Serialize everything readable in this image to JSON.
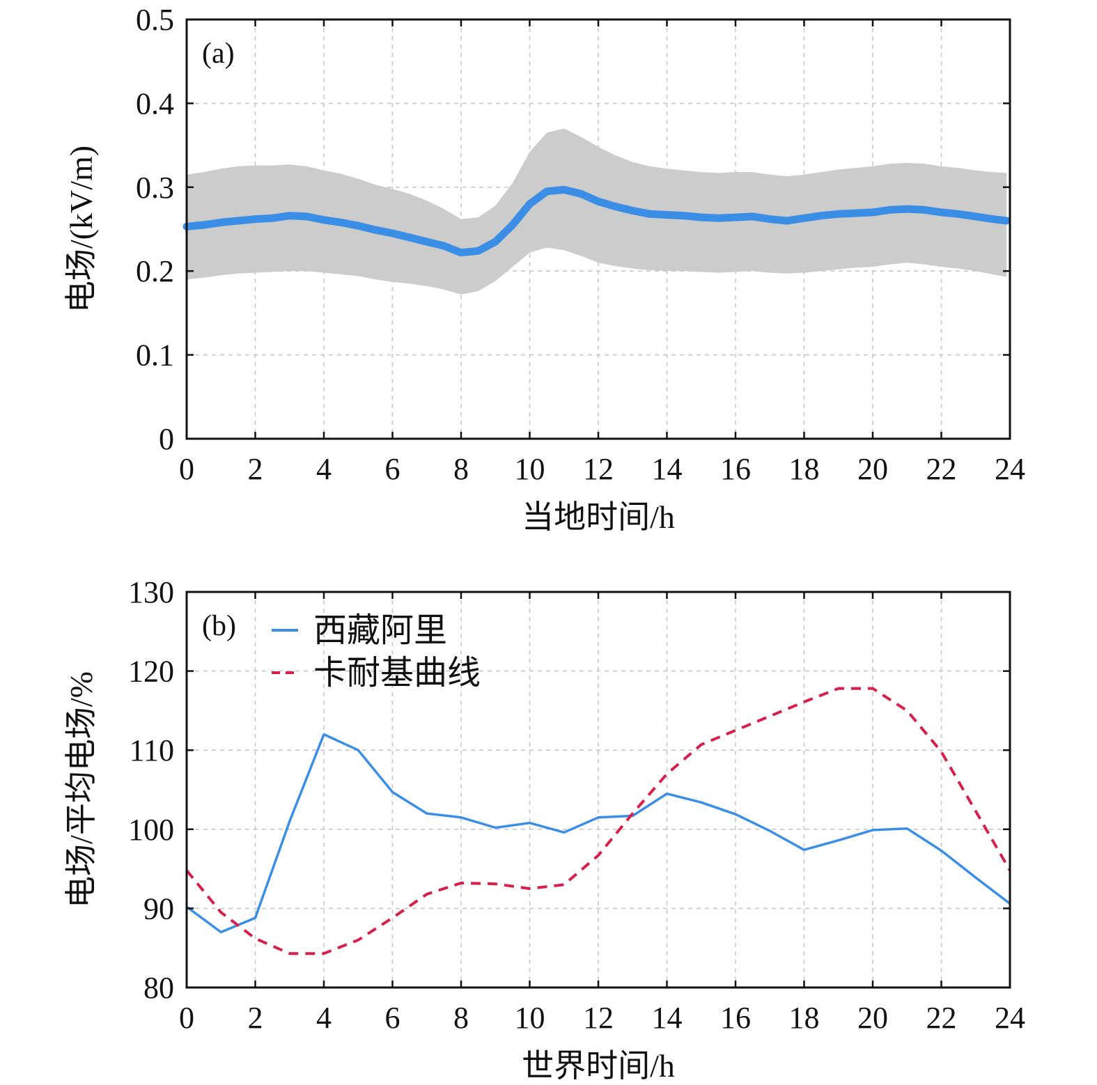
{
  "colors": {
    "line_blue": "#3a8ee6",
    "band_gray": "#cccccc",
    "dash_red": "#d6204a",
    "axis": "#111111",
    "grid": "#c8c8c8"
  },
  "chart_data": [
    {
      "type": "line",
      "panel_label": "(a)",
      "xlabel": "当地时间/h",
      "ylabel": "电场/(kV/m)",
      "xlim": [
        0,
        24
      ],
      "ylim": [
        0,
        0.5
      ],
      "xticks": [
        0,
        2,
        4,
        6,
        8,
        10,
        12,
        14,
        16,
        18,
        20,
        22,
        24
      ],
      "xtick_labels": [
        "0",
        "2",
        "4",
        "6",
        "8",
        "10",
        "12",
        "14",
        "16",
        "18",
        "20",
        "22",
        "24"
      ],
      "yticks": [
        0,
        0.1,
        0.2,
        0.3,
        0.4,
        0.5
      ],
      "ytick_labels": [
        "0",
        "0.1",
        "0.2",
        "0.3",
        "0.4",
        "0.5"
      ],
      "grid": true,
      "x": [
        0,
        0.5,
        1,
        1.5,
        2,
        2.5,
        3,
        3.5,
        4,
        4.5,
        5,
        5.5,
        6,
        6.5,
        7,
        7.5,
        8,
        8.5,
        9,
        9.5,
        10,
        10.5,
        11,
        11.5,
        12,
        12.5,
        13,
        13.5,
        14,
        14.5,
        15,
        15.5,
        16,
        16.5,
        17,
        17.5,
        18,
        18.5,
        19,
        19.5,
        20,
        20.5,
        21,
        21.5,
        22,
        22.5,
        23,
        23.5,
        23.9
      ],
      "series": [
        {
          "values": [
            0.253,
            0.255,
            0.258,
            0.26,
            0.262,
            0.263,
            0.266,
            0.265,
            0.261,
            0.258,
            0.254,
            0.249,
            0.245,
            0.24,
            0.235,
            0.23,
            0.222,
            0.224,
            0.235,
            0.255,
            0.28,
            0.295,
            0.297,
            0.292,
            0.283,
            0.277,
            0.272,
            0.268,
            0.267,
            0.266,
            0.264,
            0.263,
            0.264,
            0.265,
            0.262,
            0.26,
            0.263,
            0.266,
            0.268,
            0.269,
            0.27,
            0.273,
            0.274,
            0.273,
            0.27,
            0.268,
            0.265,
            0.262,
            0.26
          ]
        },
        {
          "kind": "band",
          "upper": [
            0.315,
            0.318,
            0.322,
            0.325,
            0.326,
            0.326,
            0.327,
            0.325,
            0.32,
            0.316,
            0.31,
            0.303,
            0.298,
            0.292,
            0.284,
            0.274,
            0.262,
            0.264,
            0.278,
            0.305,
            0.342,
            0.365,
            0.37,
            0.36,
            0.348,
            0.338,
            0.33,
            0.325,
            0.322,
            0.32,
            0.318,
            0.317,
            0.318,
            0.318,
            0.315,
            0.313,
            0.315,
            0.318,
            0.321,
            0.323,
            0.325,
            0.328,
            0.329,
            0.328,
            0.325,
            0.323,
            0.32,
            0.318,
            0.317
          ],
          "lower": [
            0.19,
            0.192,
            0.195,
            0.197,
            0.198,
            0.199,
            0.2,
            0.2,
            0.198,
            0.196,
            0.194,
            0.19,
            0.187,
            0.185,
            0.182,
            0.178,
            0.172,
            0.176,
            0.188,
            0.205,
            0.222,
            0.228,
            0.225,
            0.218,
            0.21,
            0.206,
            0.203,
            0.201,
            0.2,
            0.2,
            0.199,
            0.198,
            0.199,
            0.2,
            0.198,
            0.197,
            0.198,
            0.2,
            0.202,
            0.204,
            0.205,
            0.208,
            0.21,
            0.208,
            0.205,
            0.203,
            0.2,
            0.196,
            0.193
          ]
        }
      ]
    },
    {
      "type": "line",
      "panel_label": "(b)",
      "xlabel": "世界时间/h",
      "ylabel": "电场/平均电场/%",
      "xlim": [
        0,
        24
      ],
      "ylim": [
        80,
        130
      ],
      "xticks": [
        0,
        2,
        4,
        6,
        8,
        10,
        12,
        14,
        16,
        18,
        20,
        22,
        24
      ],
      "xtick_labels": [
        "0",
        "2",
        "4",
        "6",
        "8",
        "10",
        "12",
        "14",
        "16",
        "18",
        "20",
        "22",
        "24"
      ],
      "yticks": [
        80,
        90,
        100,
        110,
        120,
        130
      ],
      "ytick_labels": [
        "80",
        "90",
        "100",
        "110",
        "120",
        "130"
      ],
      "grid": true,
      "legend": "top-left",
      "series": [
        {
          "name": "西藏阿里",
          "style": "solid",
          "x": [
            0,
            1,
            2,
            3,
            4,
            5,
            6,
            7,
            8,
            9,
            10,
            11,
            12,
            13,
            14,
            15,
            16,
            17,
            18,
            19,
            20,
            21,
            22,
            23,
            24
          ],
          "values": [
            90.2,
            87.0,
            88.8,
            101.0,
            112.0,
            110.0,
            104.7,
            102.0,
            101.5,
            100.2,
            100.8,
            99.6,
            101.5,
            101.7,
            104.5,
            103.4,
            101.9,
            99.8,
            97.4,
            98.6,
            99.9,
            100.1,
            97.3,
            93.9,
            90.6
          ]
        },
        {
          "name": "卡耐基曲线",
          "style": "dashed",
          "x": [
            0,
            1,
            2,
            3,
            4,
            5,
            6,
            7,
            8,
            9,
            10,
            11,
            12,
            13,
            14,
            15,
            16,
            17,
            18,
            19,
            20,
            21,
            22,
            23,
            24
          ],
          "values": [
            94.8,
            89.5,
            86.2,
            84.3,
            84.3,
            86.0,
            88.8,
            91.8,
            93.2,
            93.1,
            92.5,
            93.0,
            96.7,
            102.0,
            107.0,
            110.7,
            112.5,
            114.3,
            116.1,
            117.8,
            117.8,
            115.0,
            109.8,
            102.3,
            94.8
          ]
        }
      ]
    }
  ]
}
